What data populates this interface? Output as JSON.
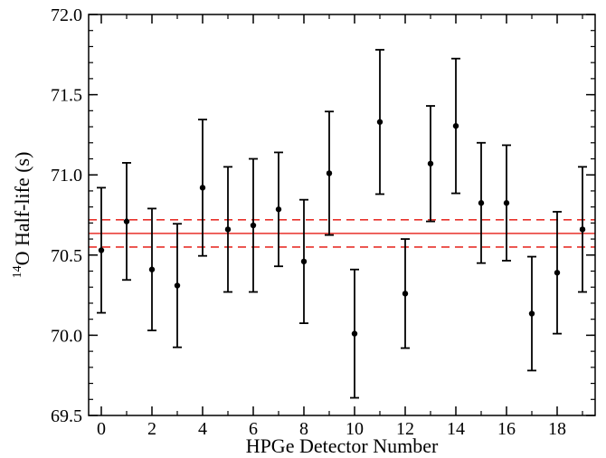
{
  "chart_data": {
    "type": "scatter",
    "title": "",
    "xlabel": "HPGe Detector Number",
    "ylabel_sup": "14",
    "ylabel_rest": "O Half-life (s)",
    "xlim": [
      -0.5,
      19.5
    ],
    "ylim": [
      69.5,
      72.0
    ],
    "x_ticks": [
      0,
      2,
      4,
      6,
      8,
      10,
      12,
      14,
      16,
      18
    ],
    "x_minor_ticks": [
      1,
      3,
      5,
      7,
      9,
      11,
      13,
      15,
      17,
      19
    ],
    "y_ticks": [
      "69.5",
      "70.0",
      "70.5",
      "71.0",
      "71.5",
      "72.0"
    ],
    "grid": false,
    "points": [
      {
        "x": 0,
        "y": 70.53,
        "err": 0.39
      },
      {
        "x": 1,
        "y": 70.71,
        "err": 0.365
      },
      {
        "x": 2,
        "y": 70.41,
        "err": 0.38
      },
      {
        "x": 3,
        "y": 70.31,
        "err": 0.385
      },
      {
        "x": 4,
        "y": 70.92,
        "err": 0.425
      },
      {
        "x": 5,
        "y": 70.66,
        "err": 0.39
      },
      {
        "x": 6,
        "y": 70.685,
        "err": 0.415
      },
      {
        "x": 7,
        "y": 70.785,
        "err": 0.355
      },
      {
        "x": 8,
        "y": 70.46,
        "err": 0.385
      },
      {
        "x": 9,
        "y": 71.01,
        "err": 0.385
      },
      {
        "x": 10,
        "y": 70.01,
        "err": 0.4
      },
      {
        "x": 11,
        "y": 71.33,
        "err": 0.45
      },
      {
        "x": 12,
        "y": 70.26,
        "err": 0.34
      },
      {
        "x": 13,
        "y": 71.07,
        "err": 0.36
      },
      {
        "x": 14,
        "y": 71.305,
        "err": 0.42
      },
      {
        "x": 15,
        "y": 70.825,
        "err": 0.375
      },
      {
        "x": 16,
        "y": 70.825,
        "err": 0.36
      },
      {
        "x": 17,
        "y": 70.135,
        "err": 0.355
      },
      {
        "x": 18,
        "y": 70.39,
        "err": 0.38
      },
      {
        "x": 19,
        "y": 70.66,
        "err": 0.39
      }
    ],
    "mean_line": {
      "value": 70.635,
      "color": "#e8312a",
      "style": "solid"
    },
    "band_lines": {
      "upper": 70.72,
      "lower": 70.55,
      "color": "#e8312a",
      "style": "dashed"
    },
    "marker_color": "#000000"
  }
}
